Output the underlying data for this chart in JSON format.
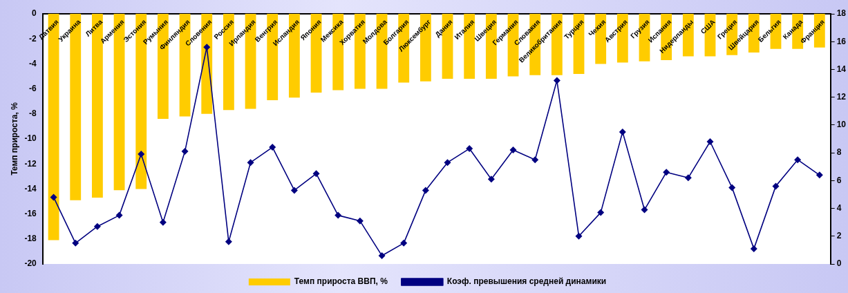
{
  "chart_data": {
    "type": "bar",
    "ylabel": "Темп прироста, %",
    "categories": [
      "Латвия",
      "Украина",
      "Литва",
      "Армения",
      "Эстония",
      "Румыния",
      "Финляндия",
      "Словения",
      "Россия",
      "Ирландия",
      "Венгрия",
      "Исландия",
      "Япония",
      "Мексика",
      "Хорватия",
      "Молдова",
      "Болгария",
      "Люксембург",
      "Дания",
      "Италия",
      "Швеция",
      "Германия",
      "Словакия",
      "Великобритания",
      "Турция",
      "Чехия",
      "Австрия",
      "Грузия",
      "Испания",
      "Нидерланды",
      "США",
      "Греция",
      "Швейцария",
      "Бельгия",
      "Канада",
      "Франция"
    ],
    "series": [
      {
        "name": "Темп прироста ВВП, %",
        "color": "#ffcc00",
        "values": [
          -18.1,
          -14.9,
          -14.7,
          -14.1,
          -14.0,
          -8.4,
          -8.2,
          -8.0,
          -7.7,
          -7.6,
          -6.9,
          -6.7,
          -6.3,
          -6.1,
          -6.0,
          -6.0,
          -5.5,
          -5.4,
          -5.2,
          -5.2,
          -5.2,
          -5.0,
          -4.9,
          -4.9,
          -4.8,
          -4.0,
          -3.9,
          -3.8,
          -3.7,
          -3.4,
          -3.4,
          -3.3,
          -3.1,
          -2.8,
          -2.8,
          -2.7
        ]
      },
      {
        "name": "Коэф. превышения средней динамики",
        "type": "line",
        "axis": "y2",
        "color": "#000080",
        "values": [
          4.8,
          1.5,
          2.7,
          3.5,
          7.9,
          3.0,
          8.1,
          15.6,
          1.6,
          7.3,
          8.4,
          5.3,
          6.5,
          3.5,
          3.1,
          0.6,
          1.5,
          5.3,
          7.3,
          8.3,
          6.1,
          8.2,
          7.5,
          13.2,
          2.0,
          3.7,
          9.5,
          3.9,
          6.6,
          6.2,
          8.8,
          5.5,
          1.1,
          5.6,
          7.5,
          6.4
        ]
      }
    ],
    "ylim": [
      -20,
      0
    ],
    "yticks": [
      -20,
      -18,
      -16,
      -14,
      -12,
      -10,
      -8,
      -6,
      -4,
      -2,
      0
    ],
    "y2lim": [
      0,
      18
    ],
    "y2ticks": [
      0,
      2,
      4,
      6,
      8,
      10,
      12,
      14,
      16,
      18
    ],
    "marker": "diamond",
    "grid": false,
    "legend": "bottom"
  }
}
